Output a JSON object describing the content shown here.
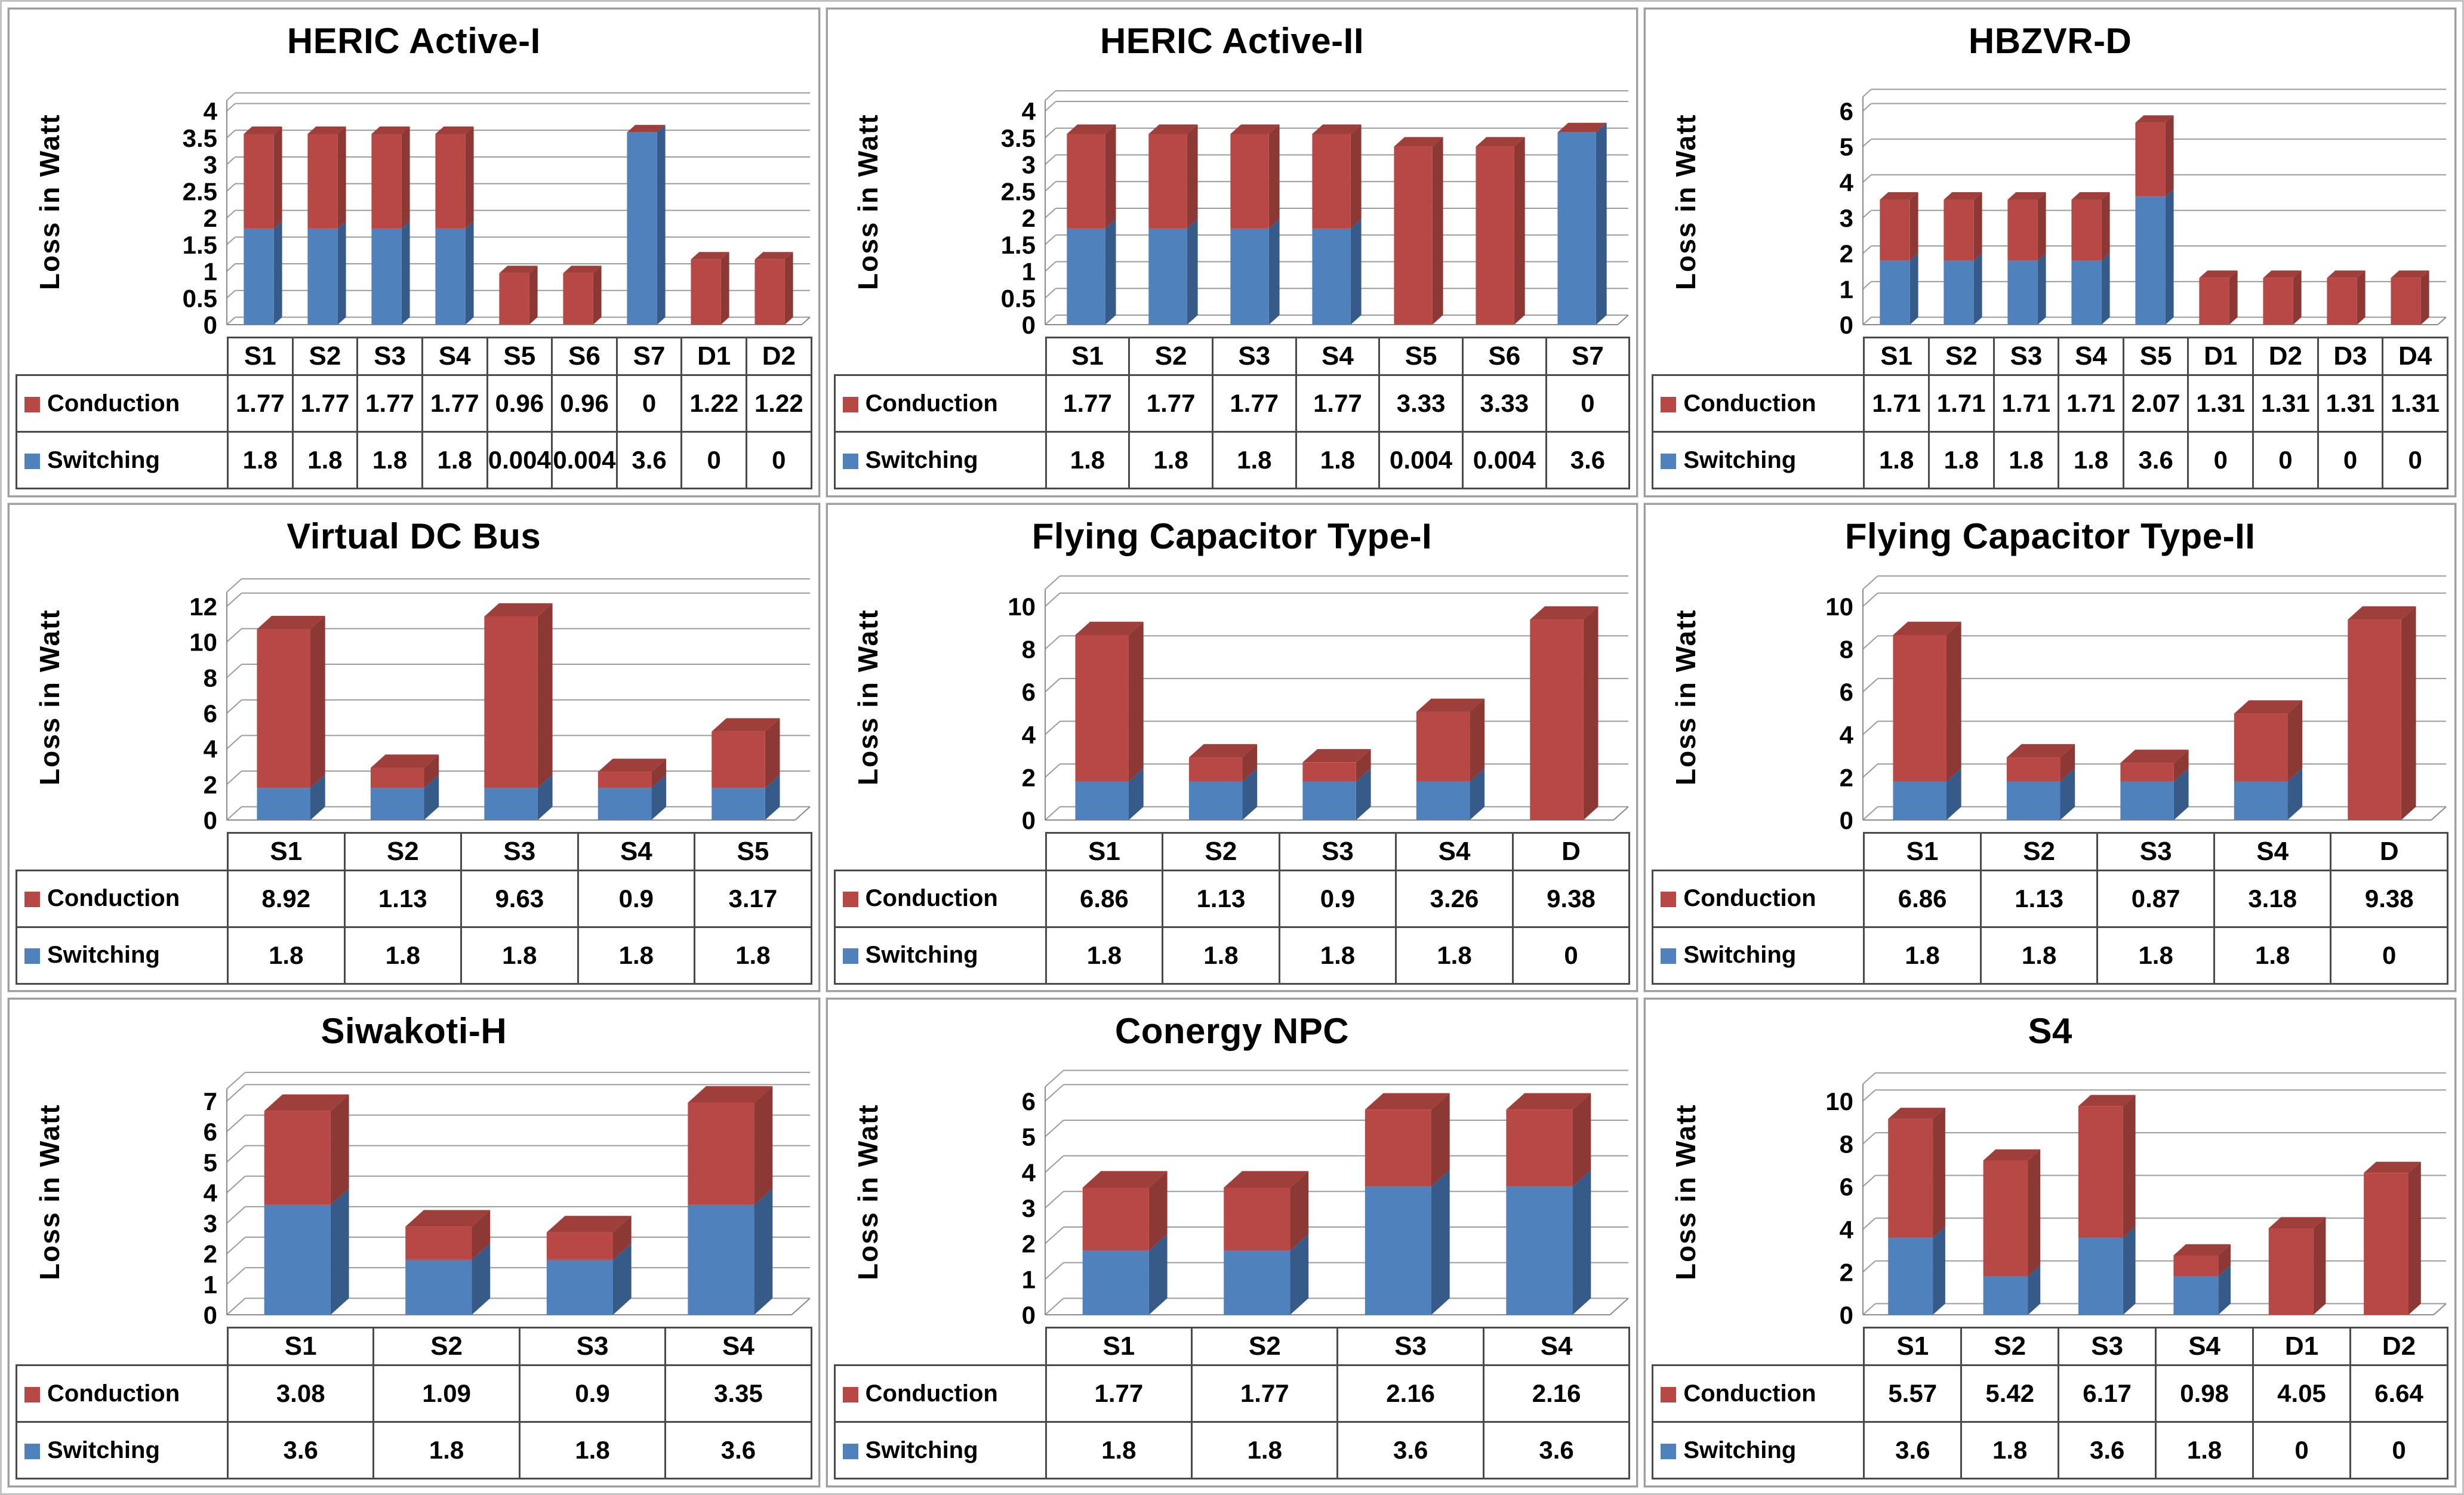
{
  "colors": {
    "conduction_front": "#B84845",
    "conduction_side": "#8C3834",
    "conduction_top": "#9E3F3C",
    "switching_front": "#4F81BD",
    "switching_side": "#365B88",
    "gridline": "#9B9B9B",
    "axis": "#8A8A8A",
    "table_border": "#4A4A4A"
  },
  "chart_data": [
    {
      "type": "bar",
      "stacked": true,
      "grid": true,
      "legend_position": "table-left",
      "title": "HERIC Active-I",
      "ylabel": "Loss in Watt",
      "ylim": [
        0,
        4
      ],
      "ytick_step": 0.5,
      "yticks": [
        "0",
        "0.5",
        "1",
        "1.5",
        "2",
        "2.5",
        "3",
        "3.5",
        "4"
      ],
      "categories": [
        "S1",
        "S2",
        "S3",
        "S4",
        "S5",
        "S6",
        "S7",
        "D1",
        "D2"
      ],
      "series": [
        {
          "name": "Conduction",
          "values": [
            1.77,
            1.77,
            1.77,
            1.77,
            0.96,
            0.96,
            0,
            1.22,
            1.22
          ]
        },
        {
          "name": "Switching",
          "values": [
            1.8,
            1.8,
            1.8,
            1.8,
            0.004,
            0.004,
            3.6,
            0,
            0
          ]
        }
      ]
    },
    {
      "type": "bar",
      "stacked": true,
      "grid": true,
      "legend_position": "table-left",
      "title": "HERIC Active-II",
      "ylabel": "Loss in Watt",
      "ylim": [
        0,
        4
      ],
      "ytick_step": 0.5,
      "yticks": [
        "0",
        "0.5",
        "1",
        "1.5",
        "2",
        "2.5",
        "3",
        "3.5",
        "4"
      ],
      "categories": [
        "S1",
        "S2",
        "S3",
        "S4",
        "S5",
        "S6",
        "S7"
      ],
      "series": [
        {
          "name": "Conduction",
          "values": [
            1.77,
            1.77,
            1.77,
            1.77,
            3.33,
            3.33,
            0
          ]
        },
        {
          "name": "Switching",
          "values": [
            1.8,
            1.8,
            1.8,
            1.8,
            0.004,
            0.004,
            3.6
          ]
        }
      ]
    },
    {
      "type": "bar",
      "stacked": true,
      "grid": true,
      "legend_position": "table-left",
      "title": "HBZVR-D",
      "ylabel": "Loss in Watt",
      "ylim": [
        0,
        6
      ],
      "ytick_step": 1,
      "yticks": [
        "0",
        "1",
        "2",
        "3",
        "4",
        "5",
        "6"
      ],
      "categories": [
        "S1",
        "S2",
        "S3",
        "S4",
        "S5",
        "D1",
        "D2",
        "D3",
        "D4"
      ],
      "series": [
        {
          "name": "Conduction",
          "values": [
            1.71,
            1.71,
            1.71,
            1.71,
            2.07,
            1.31,
            1.31,
            1.31,
            1.31
          ]
        },
        {
          "name": "Switching",
          "values": [
            1.8,
            1.8,
            1.8,
            1.8,
            3.6,
            0,
            0,
            0,
            0
          ]
        }
      ]
    },
    {
      "type": "bar",
      "stacked": true,
      "grid": true,
      "legend_position": "table-left",
      "title": "Virtual DC Bus",
      "ylabel": "Loss in Watt",
      "ylim": [
        0,
        12
      ],
      "ytick_step": 2,
      "yticks": [
        "0",
        "2",
        "4",
        "6",
        "8",
        "10",
        "12"
      ],
      "categories": [
        "S1",
        "S2",
        "S3",
        "S4",
        "S5"
      ],
      "series": [
        {
          "name": "Conduction",
          "values": [
            8.92,
            1.13,
            9.63,
            0.9,
            3.17
          ]
        },
        {
          "name": "Switching",
          "values": [
            1.8,
            1.8,
            1.8,
            1.8,
            1.8
          ]
        }
      ]
    },
    {
      "type": "bar",
      "stacked": true,
      "grid": true,
      "legend_position": "table-left",
      "title": "Flying Capacitor Type-I",
      "ylabel": "Loss in Watt",
      "ylim": [
        0,
        10
      ],
      "ytick_step": 2,
      "yticks": [
        "0",
        "2",
        "4",
        "6",
        "8",
        "10"
      ],
      "categories": [
        "S1",
        "S2",
        "S3",
        "S4",
        "D"
      ],
      "series": [
        {
          "name": "Conduction",
          "values": [
            6.86,
            1.13,
            0.9,
            3.26,
            9.38
          ]
        },
        {
          "name": "Switching",
          "values": [
            1.8,
            1.8,
            1.8,
            1.8,
            0
          ]
        }
      ]
    },
    {
      "type": "bar",
      "stacked": true,
      "grid": true,
      "legend_position": "table-left",
      "title": "Flying Capacitor Type-II",
      "ylabel": "Loss in Watt",
      "ylim": [
        0,
        10
      ],
      "ytick_step": 2,
      "yticks": [
        "0",
        "2",
        "4",
        "6",
        "8",
        "10"
      ],
      "categories": [
        "S1",
        "S2",
        "S3",
        "S4",
        "D"
      ],
      "series": [
        {
          "name": "Conduction",
          "values": [
            6.86,
            1.13,
            0.87,
            3.18,
            9.38
          ]
        },
        {
          "name": "Switching",
          "values": [
            1.8,
            1.8,
            1.8,
            1.8,
            0
          ]
        }
      ]
    },
    {
      "type": "bar",
      "stacked": true,
      "grid": true,
      "legend_position": "table-left",
      "title": "Siwakoti-H",
      "ylabel": "Loss in Watt",
      "ylim": [
        0,
        7
      ],
      "ytick_step": 1,
      "yticks": [
        "0",
        "1",
        "2",
        "3",
        "4",
        "5",
        "6",
        "7"
      ],
      "categories": [
        "S1",
        "S2",
        "S3",
        "S4"
      ],
      "series": [
        {
          "name": "Conduction",
          "values": [
            3.08,
            1.09,
            0.9,
            3.35
          ]
        },
        {
          "name": "Switching",
          "values": [
            3.6,
            1.8,
            1.8,
            3.6
          ]
        }
      ]
    },
    {
      "type": "bar",
      "stacked": true,
      "grid": true,
      "legend_position": "table-left",
      "title": "Conergy NPC",
      "ylabel": "Loss in Watt",
      "ylim": [
        0,
        6
      ],
      "ytick_step": 1,
      "yticks": [
        "0",
        "1",
        "2",
        "3",
        "4",
        "5",
        "6"
      ],
      "categories": [
        "S1",
        "S2",
        "S3",
        "S4"
      ],
      "series": [
        {
          "name": "Conduction",
          "values": [
            1.77,
            1.77,
            2.16,
            2.16
          ]
        },
        {
          "name": "Switching",
          "values": [
            1.8,
            1.8,
            3.6,
            3.6
          ]
        }
      ]
    },
    {
      "type": "bar",
      "stacked": true,
      "grid": true,
      "legend_position": "table-left",
      "title": "S4",
      "ylabel": "Loss in Watt",
      "ylim": [
        0,
        10
      ],
      "ytick_step": 2,
      "yticks": [
        "0",
        "2",
        "4",
        "6",
        "8",
        "10"
      ],
      "categories": [
        "S1",
        "S2",
        "S3",
        "S4",
        "D1",
        "D2"
      ],
      "series": [
        {
          "name": "Conduction",
          "values": [
            5.57,
            5.42,
            6.17,
            0.98,
            4.05,
            6.64
          ]
        },
        {
          "name": "Switching",
          "values": [
            3.6,
            1.8,
            3.6,
            1.8,
            0,
            0
          ]
        }
      ]
    }
  ]
}
